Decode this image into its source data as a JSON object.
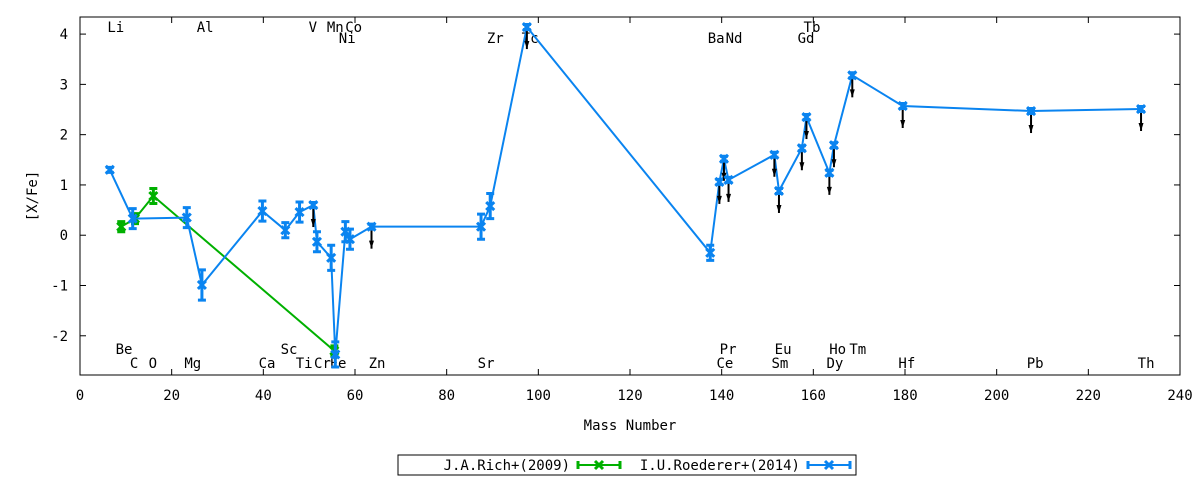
{
  "chart_data": {
    "type": "line",
    "xlabel": "Mass Number",
    "ylabel": "[X/Fe]",
    "xlim": [
      0,
      240
    ],
    "ylim": [
      -2.78,
      4.34
    ],
    "xticks": [
      0,
      20,
      40,
      60,
      80,
      100,
      120,
      140,
      160,
      180,
      200,
      220,
      240
    ],
    "yticks": [
      -2,
      -1,
      0,
      1,
      2,
      3,
      4
    ],
    "series": [
      {
        "name": "J.A.Rich+(2009)",
        "color": "#00b000",
        "points": [
          [
            9,
            0.17,
            0.1
          ],
          [
            12,
            0.33,
            0.1
          ],
          [
            16,
            0.78,
            0.15
          ],
          [
            55.5,
            -2.3,
            0.1
          ]
        ]
      },
      {
        "name": "I.U.Roederer+(2014)",
        "color": "#0a84f0",
        "points": [
          [
            6.5,
            1.3,
            0.05,
            0
          ],
          [
            11.5,
            0.33,
            0.2,
            0
          ],
          [
            23.3,
            0.35,
            0.2,
            0
          ],
          [
            26.6,
            -0.99,
            0.3,
            0
          ],
          [
            39.8,
            0.48,
            0.2,
            0
          ],
          [
            44.8,
            0.1,
            0.15,
            0
          ],
          [
            47.9,
            0.46,
            0.2,
            0
          ],
          [
            50.9,
            0.6,
            0.05,
            1
          ],
          [
            51.7,
            -0.13,
            0.2,
            0
          ],
          [
            54.8,
            -0.45,
            0.25,
            0
          ],
          [
            55.7,
            -2.37,
            0.25,
            0
          ],
          [
            57.9,
            0.07,
            0.2,
            0
          ],
          [
            58.9,
            -0.08,
            0.2,
            0
          ],
          [
            63.6,
            0.17,
            0.05,
            1
          ],
          [
            87.5,
            0.17,
            0.25,
            0
          ],
          [
            89.5,
            0.58,
            0.25,
            0
          ],
          [
            97.5,
            4.14,
            0.05,
            1
          ],
          [
            137.5,
            -0.35,
            0.15,
            0
          ],
          [
            139.5,
            1.06,
            0.05,
            1
          ],
          [
            140.5,
            1.52,
            0.05,
            1
          ],
          [
            141.5,
            1.1,
            0.05,
            1
          ],
          [
            151.5,
            1.6,
            0.05,
            1
          ],
          [
            152.5,
            0.88,
            0.05,
            1
          ],
          [
            157.5,
            1.73,
            0.05,
            1
          ],
          [
            158.5,
            2.35,
            0.05,
            1
          ],
          [
            163.5,
            1.24,
            0.05,
            1
          ],
          [
            164.5,
            1.79,
            0.05,
            1
          ],
          [
            168.5,
            3.18,
            0.05,
            1
          ],
          [
            179.5,
            2.57,
            0.05,
            1
          ],
          [
            207.5,
            2.47,
            0.05,
            1
          ],
          [
            231.5,
            2.51,
            0.05,
            1
          ]
        ]
      }
    ],
    "element_labels": [
      {
        "t": "Li",
        "m": 7.8,
        "row": "top1"
      },
      {
        "t": "Al",
        "m": 27.3,
        "row": "top1"
      },
      {
        "t": "V",
        "m": 50.8,
        "row": "top1"
      },
      {
        "t": "Mn",
        "m": 55.7,
        "row": "top1"
      },
      {
        "t": "Co",
        "m": 59.7,
        "row": "top1"
      },
      {
        "t": "Tb",
        "m": 159.7,
        "row": "top1"
      },
      {
        "t": "Ni",
        "m": 58.3,
        "row": "top2"
      },
      {
        "t": "Zr",
        "m": 90.6,
        "row": "top2"
      },
      {
        "t": "Tc",
        "m": 98.2,
        "row": "top2"
      },
      {
        "t": "Ba",
        "m": 138.8,
        "row": "top2"
      },
      {
        "t": "Nd",
        "m": 142.7,
        "row": "top2"
      },
      {
        "t": "Gd",
        "m": 158.4,
        "row": "top2"
      },
      {
        "t": "Be",
        "m": 9.6,
        "row": "bot1"
      },
      {
        "t": "Sc",
        "m": 45.6,
        "row": "bot1"
      },
      {
        "t": "Pr",
        "m": 141.4,
        "row": "bot1"
      },
      {
        "t": "Eu",
        "m": 153.4,
        "row": "bot1"
      },
      {
        "t": "Ho",
        "m": 165.3,
        "row": "bot1"
      },
      {
        "t": "Tm",
        "m": 169.7,
        "row": "bot1"
      },
      {
        "t": "C",
        "m": 11.8,
        "row": "bot2"
      },
      {
        "t": "O",
        "m": 15.9,
        "row": "bot2"
      },
      {
        "t": "Mg",
        "m": 24.6,
        "row": "bot2"
      },
      {
        "t": "Ca",
        "m": 40.8,
        "row": "bot2"
      },
      {
        "t": "Ti",
        "m": 48.9,
        "row": "bot2"
      },
      {
        "t": "Cr",
        "m": 52.9,
        "row": "bot2"
      },
      {
        "t": "Fe",
        "m": 56.3,
        "row": "bot2"
      },
      {
        "t": "Zn",
        "m": 64.8,
        "row": "bot2"
      },
      {
        "t": "Sr",
        "m": 88.6,
        "row": "bot2"
      },
      {
        "t": "Ce",
        "m": 140.7,
        "row": "bot2"
      },
      {
        "t": "Sm",
        "m": 152.7,
        "row": "bot2"
      },
      {
        "t": "Dy",
        "m": 164.7,
        "row": "bot2"
      },
      {
        "t": "Hf",
        "m": 180.4,
        "row": "bot2"
      },
      {
        "t": "Pb",
        "m": 208.4,
        "row": "bot2"
      },
      {
        "t": "Th",
        "m": 232.6,
        "row": "bot2"
      }
    ]
  }
}
